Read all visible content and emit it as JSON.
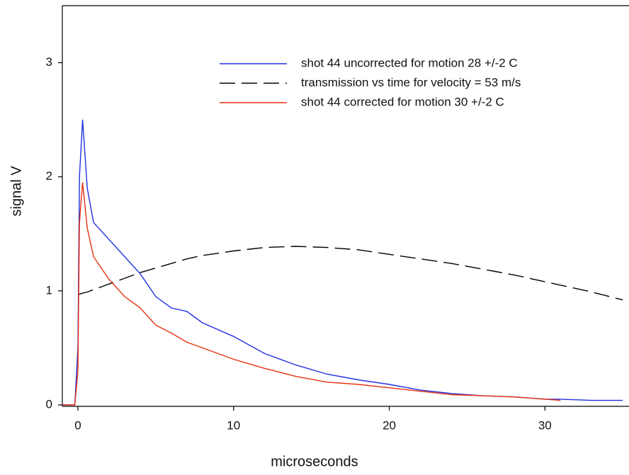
{
  "chart_data": {
    "type": "line",
    "xlabel": "microseconds",
    "ylabel": "signal V",
    "xlim": [
      -1,
      35.4
    ],
    "ylim": [
      0,
      3.5
    ],
    "xticks": [
      0,
      10,
      20,
      30
    ],
    "yticks": [
      0,
      1,
      2,
      3
    ],
    "grid": false,
    "legend": "top right",
    "x": [
      -1,
      -0.2,
      0,
      0.1,
      0.3,
      0.6,
      1,
      2,
      3,
      4,
      5,
      6,
      7,
      8,
      10,
      12,
      14,
      16,
      18,
      20,
      22,
      24,
      26,
      28,
      30,
      31,
      33,
      35
    ],
    "series": [
      {
        "name": "shot 44 uncorrected for motion 28 +/-2 C",
        "color": "#2030e0",
        "style": "solid",
        "values": [
          0,
          0,
          0.5,
          2.0,
          2.5,
          1.9,
          1.6,
          1.45,
          1.3,
          1.15,
          0.95,
          0.85,
          0.82,
          0.72,
          0.6,
          0.45,
          0.35,
          0.27,
          0.22,
          0.18,
          0.13,
          0.1,
          0.08,
          0.07,
          0.05,
          0.05,
          0.04,
          0.04
        ]
      },
      {
        "name": "transmission vs time for velocity = 53 m/s",
        "color": "#000000",
        "style": "dashed",
        "values": [
          null,
          null,
          0.97,
          0.97,
          0.98,
          0.99,
          1.01,
          1.06,
          1.11,
          1.16,
          1.2,
          1.24,
          1.28,
          1.31,
          1.35,
          1.38,
          1.39,
          1.38,
          1.36,
          1.32,
          1.28,
          1.24,
          1.19,
          1.14,
          1.08,
          1.05,
          0.99,
          0.92
        ]
      },
      {
        "name": "shot 44 corrected for motion  30 +/-2 C",
        "color": "#e83010",
        "style": "solid",
        "values": [
          0,
          0,
          0.3,
          1.6,
          1.95,
          1.55,
          1.3,
          1.1,
          0.95,
          0.85,
          0.7,
          0.63,
          0.55,
          0.5,
          0.4,
          0.32,
          0.25,
          0.2,
          0.18,
          0.15,
          0.12,
          0.09,
          0.08,
          0.07,
          0.05,
          0.04,
          null,
          null
        ]
      }
    ]
  }
}
